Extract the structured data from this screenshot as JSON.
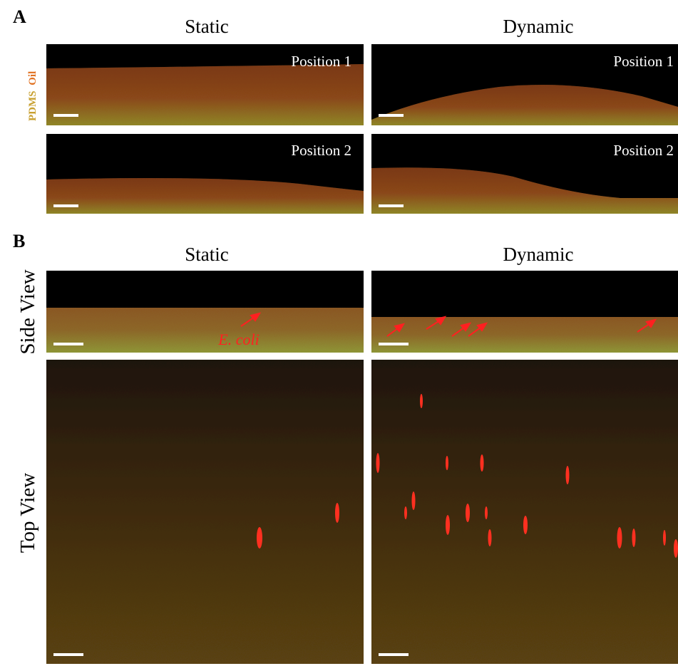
{
  "panel_a": {
    "label": "A",
    "columns": [
      "Static",
      "Dynamic"
    ],
    "side_label": [
      "PDMS",
      "Oil"
    ],
    "positions": [
      [
        "Position 1",
        "Position 1"
      ],
      [
        "Position 2",
        "Position 2"
      ]
    ]
  },
  "panel_b": {
    "label": "B",
    "columns": [
      "Static",
      "Dynamic"
    ],
    "rows": [
      "Side View",
      "Top View"
    ],
    "annotation": "E. coli"
  }
}
